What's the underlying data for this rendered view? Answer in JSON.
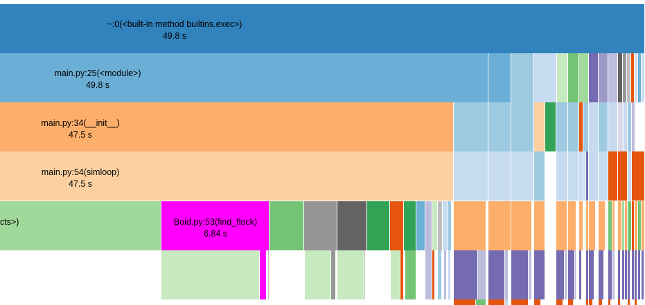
{
  "frames": {
    "exec": {
      "name": "~:0(<built-in method builtins.exec>)",
      "time": "49.8 s"
    },
    "module": {
      "name": "main.py:25(<module>)",
      "time": "49.8 s"
    },
    "init": {
      "name": "main.py:34(__init__)",
      "time": "47.5 s"
    },
    "simloop": {
      "name": "main.py:54(simloop)",
      "time": "47.5 s"
    },
    "cut": {
      "name": "cts>)"
    },
    "find_flock": {
      "name": "Boid.py:53(find_flock)",
      "time": "6.84 s"
    }
  },
  "palette": {
    "dark_blue": "#3182bd",
    "blue": "#6baed6",
    "light_blue": "#9ecae1",
    "pale_blue": "#c6dbef",
    "orange": "#fdae6b",
    "dark_orange": "#e6550d",
    "pale_orange": "#fdd0a2",
    "green": "#31a354",
    "mid_green": "#74c476",
    "light_green": "#a1d99b",
    "pale_green": "#c7e9c0",
    "magenta": "#ff00ff",
    "grey": "#969696",
    "dark_grey": "#636363",
    "light_grey": "#bdbdbd",
    "purple": "#756bb1",
    "light_purple": "#9e9ac8",
    "pale_purple": "#bcbddc",
    "lavender": "#dadaeb",
    "white": "#ffffff"
  }
}
